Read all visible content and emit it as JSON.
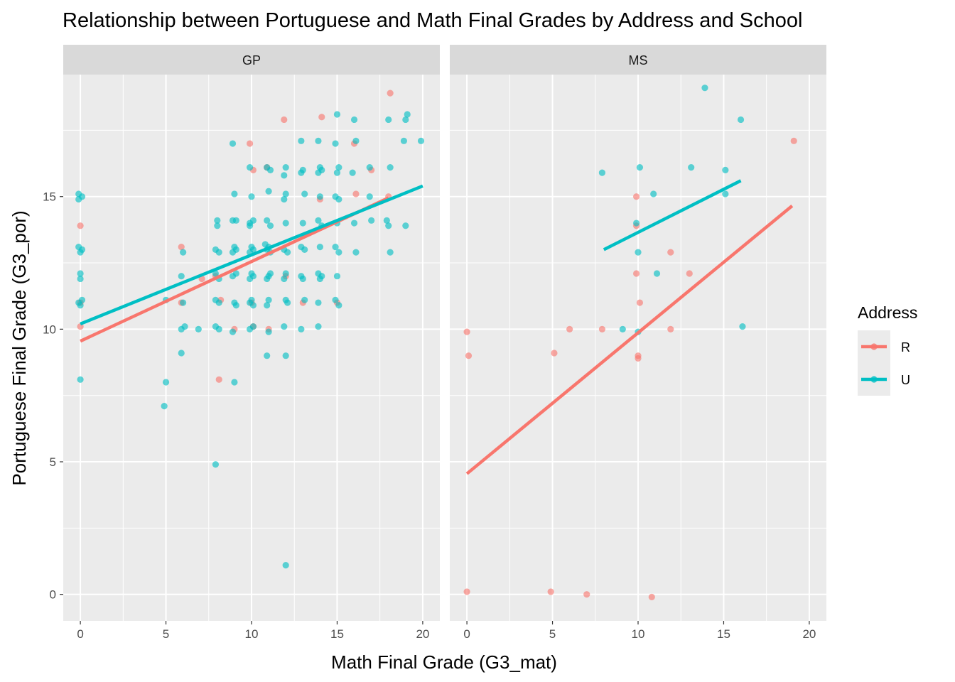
{
  "chart_data": {
    "type": "scatter",
    "title": "Relationship between Portuguese and Math Final Grades by Address and School",
    "xlabel": "Math Final Grade (G3_mat)",
    "ylabel": "Portuguese Final Grade (G3_por)",
    "xlim": [
      -1,
      21
    ],
    "ylim": [
      -1,
      19.6
    ],
    "x_ticks": [
      0,
      5,
      10,
      15,
      20
    ],
    "y_ticks": [
      0,
      5,
      10,
      15
    ],
    "grid": true,
    "legend": {
      "title": "Address",
      "position": "right",
      "entries": [
        {
          "label": "R",
          "color": "#F8766D"
        },
        {
          "label": "U",
          "color": "#00BFC4"
        }
      ]
    },
    "facets": [
      {
        "label": "GP",
        "series": [
          {
            "name": "R",
            "color": "#F8766D",
            "points": [
              [
                0,
                13.9
              ],
              [
                0,
                11
              ],
              [
                0,
                10.1
              ],
              [
                5.9,
                13.1
              ],
              [
                5.9,
                11
              ],
              [
                7.1,
                11.9
              ],
              [
                7.9,
                12
              ],
              [
                8.1,
                8.1
              ],
              [
                8.2,
                11.1
              ],
              [
                9,
                10
              ],
              [
                9.9,
                17
              ],
              [
                10.1,
                16
              ],
              [
                10,
                11
              ],
              [
                10.1,
                10.1
              ],
              [
                10.9,
                16.1
              ],
              [
                11,
                10
              ],
              [
                11.9,
                17.9
              ],
              [
                12,
                12
              ],
              [
                13,
                11
              ],
              [
                14.1,
                18
              ],
              [
                14,
                14.9
              ],
              [
                15,
                11
              ],
              [
                16,
                17
              ],
              [
                16.1,
                15.1
              ],
              [
                17,
                16
              ],
              [
                18.1,
                18.9
              ],
              [
                18,
                15
              ]
            ]
          },
          {
            "name": "U",
            "color": "#00BFC4",
            "points": [
              [
                -0.1,
                15.1
              ],
              [
                0.1,
                15
              ],
              [
                -0.1,
                14.9
              ],
              [
                -0.1,
                13.1
              ],
              [
                0.1,
                13
              ],
              [
                0,
                12.9
              ],
              [
                0,
                12.1
              ],
              [
                0,
                11.9
              ],
              [
                -0.1,
                11
              ],
              [
                0.1,
                11.1
              ],
              [
                0,
                10.9
              ],
              [
                0,
                8.1
              ],
              [
                4.9,
                7.1
              ],
              [
                5,
                8
              ],
              [
                5,
                11.1
              ],
              [
                5.9,
                12
              ],
              [
                6,
                12.9
              ],
              [
                6,
                11
              ],
              [
                5.9,
                10
              ],
              [
                6.1,
                10.1
              ],
              [
                5.9,
                9.1
              ],
              [
                6.9,
                10
              ],
              [
                7.9,
                4.9
              ],
              [
                8,
                14.1
              ],
              [
                8,
                13.9
              ],
              [
                7.9,
                13
              ],
              [
                8.1,
                12.9
              ],
              [
                7.9,
                12.1
              ],
              [
                8.1,
                11.9
              ],
              [
                7.9,
                11.1
              ],
              [
                8.1,
                11
              ],
              [
                7.9,
                10.1
              ],
              [
                8.1,
                10
              ],
              [
                8.9,
                17
              ],
              [
                9,
                15.1
              ],
              [
                8.9,
                14.1
              ],
              [
                9.1,
                14.1
              ],
              [
                9,
                13.1
              ],
              [
                8.9,
                12.9
              ],
              [
                9.1,
                13
              ],
              [
                8.9,
                12
              ],
              [
                9.1,
                12.1
              ],
              [
                9,
                11
              ],
              [
                9.1,
                10.9
              ],
              [
                8.9,
                9.9
              ],
              [
                9,
                8
              ],
              [
                9.9,
                16.1
              ],
              [
                10,
                15
              ],
              [
                9.9,
                14
              ],
              [
                10.1,
                14.1
              ],
              [
                9.9,
                13.9
              ],
              [
                10,
                13.1
              ],
              [
                9.9,
                12.9
              ],
              [
                10.1,
                13
              ],
              [
                10,
                12.1
              ],
              [
                9.9,
                11.9
              ],
              [
                10.1,
                12
              ],
              [
                9.9,
                11
              ],
              [
                10,
                11.1
              ],
              [
                10.1,
                10.9
              ],
              [
                9.9,
                10
              ],
              [
                10.1,
                10.1
              ],
              [
                10.9,
                16.1
              ],
              [
                11.1,
                16
              ],
              [
                11,
                15.2
              ],
              [
                10.9,
                14.1
              ],
              [
                11.1,
                13.9
              ],
              [
                11,
                13.1
              ],
              [
                10.9,
                13
              ],
              [
                11.1,
                12.9
              ],
              [
                10.8,
                13.2
              ],
              [
                11,
                12
              ],
              [
                10.9,
                11.9
              ],
              [
                11.1,
                12.1
              ],
              [
                11,
                11.1
              ],
              [
                10.9,
                10.9
              ],
              [
                11,
                9.9
              ],
              [
                10.9,
                9
              ],
              [
                12,
                16.1
              ],
              [
                11.9,
                15.8
              ],
              [
                12,
                15.1
              ],
              [
                11.9,
                14.9
              ],
              [
                12,
                14
              ],
              [
                11.9,
                13
              ],
              [
                12.1,
                12.9
              ],
              [
                12,
                12.1
              ],
              [
                11.9,
                11.9
              ],
              [
                12,
                11.1
              ],
              [
                12.1,
                11
              ],
              [
                11.9,
                10.1
              ],
              [
                12,
                9
              ],
              [
                12,
                1.1
              ],
              [
                12.9,
                17.1
              ],
              [
                13,
                16
              ],
              [
                12.9,
                15.9
              ],
              [
                13.1,
                15.1
              ],
              [
                13,
                14
              ],
              [
                12.9,
                13.1
              ],
              [
                13.1,
                13
              ],
              [
                12.9,
                12
              ],
              [
                13,
                11.9
              ],
              [
                13.1,
                11.1
              ],
              [
                12.9,
                10
              ],
              [
                13.9,
                17.1
              ],
              [
                14,
                16.1
              ],
              [
                13.9,
                15.9
              ],
              [
                14.1,
                16
              ],
              [
                14,
                15
              ],
              [
                13.9,
                14.1
              ],
              [
                14.1,
                13.9
              ],
              [
                14,
                13.1
              ],
              [
                13.9,
                12.1
              ],
              [
                14,
                11.9
              ],
              [
                14.1,
                12
              ],
              [
                13.9,
                11
              ],
              [
                13.9,
                10.1
              ],
              [
                15,
                18.1
              ],
              [
                14.9,
                17
              ],
              [
                15.1,
                16.1
              ],
              [
                15,
                15.9
              ],
              [
                14.9,
                15
              ],
              [
                15.1,
                14.9
              ],
              [
                15,
                14
              ],
              [
                14.9,
                13.1
              ],
              [
                15.1,
                12.9
              ],
              [
                15,
                12
              ],
              [
                14.9,
                11.1
              ],
              [
                15.1,
                10.9
              ],
              [
                16,
                17.9
              ],
              [
                16.1,
                17.1
              ],
              [
                15.9,
                15.9
              ],
              [
                16,
                14
              ],
              [
                16.1,
                12.9
              ],
              [
                16.9,
                16.1
              ],
              [
                17,
                14.1
              ],
              [
                16.9,
                15
              ],
              [
                18,
                17.9
              ],
              [
                18.1,
                16.1
              ],
              [
                17.9,
                14.1
              ],
              [
                18,
                13.9
              ],
              [
                18.1,
                12.9
              ],
              [
                18.9,
                17.1
              ],
              [
                19,
                17.9
              ],
              [
                19.1,
                18.1
              ],
              [
                19,
                13.9
              ],
              [
                19.9,
                17.1
              ]
            ]
          }
        ],
        "trend_lines": [
          {
            "name": "R",
            "x": [
              0,
              18
            ],
            "y": [
              9.55,
              14.95
            ]
          },
          {
            "name": "U",
            "x": [
              0,
              20
            ],
            "y": [
              10.2,
              15.4
            ]
          }
        ]
      },
      {
        "label": "MS",
        "series": [
          {
            "name": "R",
            "color": "#F8766D",
            "points": [
              [
                0,
                9.9
              ],
              [
                0.1,
                9
              ],
              [
                0,
                0.1
              ],
              [
                4.9,
                0.1
              ],
              [
                5.1,
                9.1
              ],
              [
                6,
                10
              ],
              [
                7,
                0
              ],
              [
                7.9,
                10
              ],
              [
                9.9,
                15
              ],
              [
                9.9,
                13.9
              ],
              [
                9.9,
                12.1
              ],
              [
                10.1,
                11
              ],
              [
                10,
                9
              ],
              [
                10,
                8.9
              ],
              [
                10.8,
                -0.1
              ],
              [
                11.9,
                12.9
              ],
              [
                11.9,
                10
              ],
              [
                13,
                12.1
              ],
              [
                19.1,
                17.1
              ]
            ]
          },
          {
            "name": "U",
            "color": "#00BFC4",
            "points": [
              [
                7.9,
                15.9
              ],
              [
                9.1,
                10
              ],
              [
                9.9,
                14
              ],
              [
                10,
                12.9
              ],
              [
                10,
                9.9
              ],
              [
                10.1,
                16.1
              ],
              [
                10.9,
                15.1
              ],
              [
                11.1,
                12.1
              ],
              [
                13.1,
                16.1
              ],
              [
                13.9,
                19.1
              ],
              [
                15.1,
                16
              ],
              [
                15.1,
                15.1
              ],
              [
                16,
                17.9
              ],
              [
                16.1,
                10.1
              ]
            ]
          }
        ],
        "trend_lines": [
          {
            "name": "R",
            "x": [
              0,
              19
            ],
            "y": [
              4.55,
              14.65
            ]
          },
          {
            "name": "U",
            "x": [
              8,
              16
            ],
            "y": [
              13,
              15.6
            ]
          }
        ]
      }
    ]
  }
}
